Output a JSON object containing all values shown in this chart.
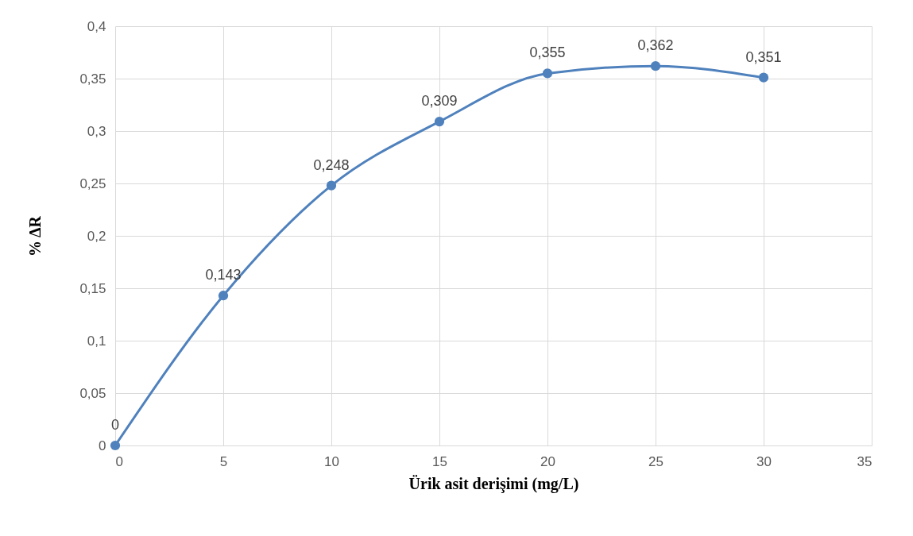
{
  "chart_data": {
    "type": "line",
    "xlabel": "Ürik asit derişimi (mg/L)",
    "ylabel": "% ΔR",
    "x": [
      0,
      5,
      10,
      15,
      20,
      25,
      30
    ],
    "series": [
      {
        "color": "#4f81bd",
        "values": [
          0,
          0.143,
          0.248,
          0.309,
          0.355,
          0.362,
          0.351
        ],
        "value_labels": [
          "0",
          "0,143",
          "0,248",
          "0,309",
          "0,355",
          "0,362",
          "0,351"
        ]
      }
    ],
    "xlim": [
      0,
      35
    ],
    "xticks": [
      0,
      5,
      10,
      15,
      20,
      25,
      30,
      35
    ],
    "ylim": [
      0,
      0.4
    ],
    "yticks": [
      0,
      {
        "value": 0.05,
        "label": "0,05"
      },
      {
        "value": 0.1,
        "label": "0,1"
      },
      {
        "value": 0.15,
        "label": "0,15"
      },
      {
        "value": 0.2,
        "label": "0,2"
      },
      {
        "value": 0.25,
        "label": "0,25"
      },
      {
        "value": 0.3,
        "label": "0,3"
      },
      {
        "value": 0.35,
        "label": "0,35"
      },
      {
        "value": 0.4,
        "label": "0,4"
      }
    ],
    "grid": true,
    "marker": "circle",
    "line_style": "solid"
  }
}
